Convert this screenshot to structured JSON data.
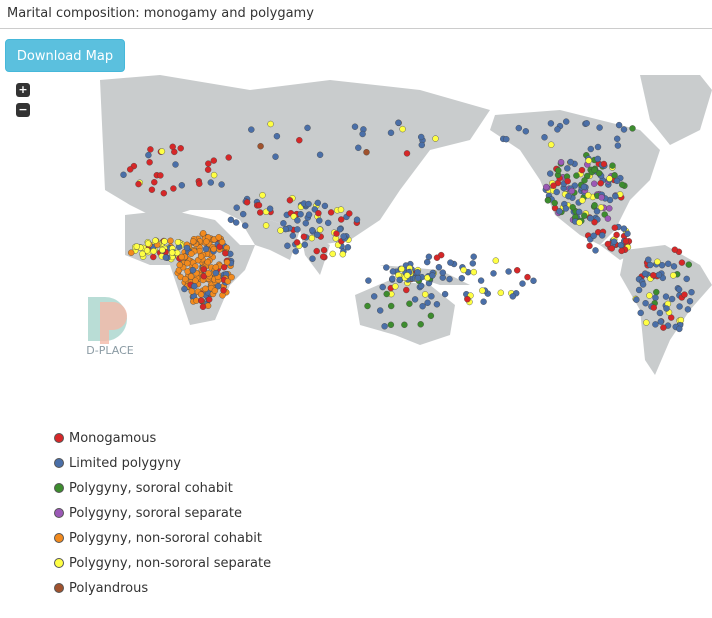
{
  "header": {
    "title": "Marital composition: monogamy and polygamy"
  },
  "toolbar": {
    "download": "Download Map"
  },
  "zoom": {
    "zoom_in": "+",
    "zoom_out": "−"
  },
  "logo": {
    "text": "D-PLACE"
  },
  "legend": {
    "items": [
      {
        "label": "Monogamous",
        "color": "#d62728"
      },
      {
        "label": "Limited polygyny",
        "color": "#4a6fa8"
      },
      {
        "label": "Polygyny, sororal cohabit",
        "color": "#3d8c2e"
      },
      {
        "label": "Polygyny, sororal separate",
        "color": "#9b59b6"
      },
      {
        "label": "Polygyny, non-sororal cohabit",
        "color": "#f28a1e"
      },
      {
        "label": "Polygyny, non-sororal separate",
        "color": "#ffff44"
      },
      {
        "label": "Polyandrous",
        "color": "#a0522d"
      }
    ]
  }
}
